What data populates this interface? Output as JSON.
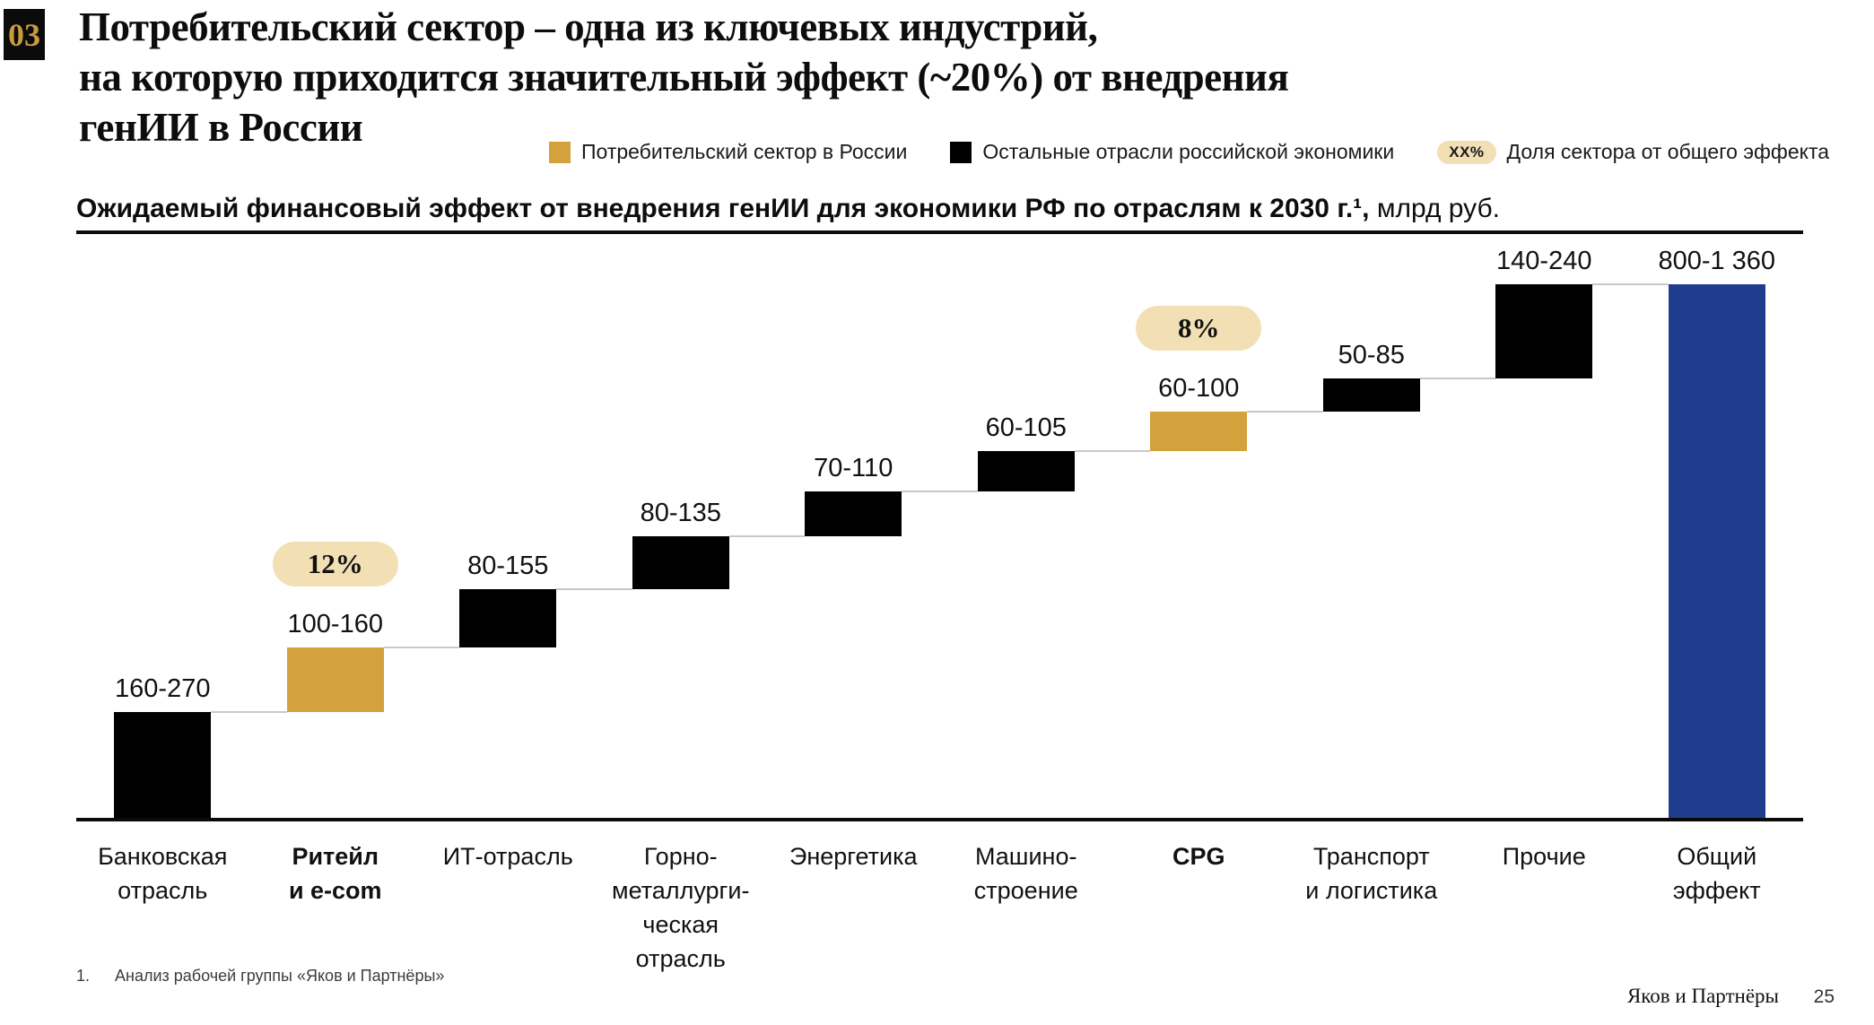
{
  "slide": {
    "badge": "03",
    "title_lines": [
      "Потребительский сектор – одна из ключевых индустрий,",
      "на которую приходится значительный эффект (~20%) от внедрения",
      "генИИ в России"
    ],
    "subtitle_bold": "Ожидаемый финансовый эффект от внедрения генИИ для экономики РФ по отраслям к 2030 г.¹,",
    "subtitle_regular": " млрд руб.",
    "footnote_number": "1.",
    "footnote_text": "Анализ рабочей группы «Яков и Партнёры»",
    "footer_brand": "Яков и Партнёры",
    "footer_page": "25"
  },
  "legend": {
    "items": [
      {
        "type": "swatch",
        "color": "#d4a23c",
        "label": "Потребительский сектор в России"
      },
      {
        "type": "swatch",
        "color": "#000000",
        "label": "Остальные отрасли российской экономики"
      },
      {
        "type": "pill",
        "pill_text": "XX%",
        "label": "Доля сектора от общего эффекта"
      }
    ]
  },
  "chart_data": {
    "type": "bar",
    "subtype": "waterfall",
    "title": "Ожидаемый финансовый эффект от внедрения генИИ для экономики РФ по отраслям к 2030 г., млрд руб.",
    "unit": "млрд руб.",
    "grid": false,
    "baseline_value": 0,
    "categories": [
      "Банковская отрасль",
      "Ритейл и e-com",
      "ИТ-отрасль",
      "Горно-металлургическая отрасль",
      "Энергетика",
      "Машиностроение",
      "CPG",
      "Транспорт и логистика",
      "Прочие",
      "Общий эффект"
    ],
    "items": [
      {
        "category": "Банковская\nотрасль",
        "label": "160-270",
        "low": 160,
        "high": 270,
        "highlight": false
      },
      {
        "category": "Ритейл\nи e-com",
        "label": "100-160",
        "low": 100,
        "high": 160,
        "highlight": true,
        "share": "12%",
        "bold_category": true
      },
      {
        "category": "ИТ-отрасль",
        "label": "80-155",
        "low": 80,
        "high": 155,
        "highlight": false
      },
      {
        "category": "Горно-\nметаллурги-\nческая\nотрасль",
        "label": "80-135",
        "low": 80,
        "high": 135,
        "highlight": false
      },
      {
        "category": "Энергетика",
        "label": "70-110",
        "low": 70,
        "high": 110,
        "highlight": false
      },
      {
        "category": "Машино-\nстроение",
        "label": "60-105",
        "low": 60,
        "high": 105,
        "highlight": false
      },
      {
        "category": "CPG",
        "label": "60-100",
        "low": 60,
        "high": 100,
        "highlight": true,
        "share": "8%",
        "bold_category": true
      },
      {
        "category": "Транспорт\nи логистика",
        "label": "50-85",
        "low": 50,
        "high": 85,
        "highlight": false
      },
      {
        "category": "Прочие",
        "label": "140-240",
        "low": 140,
        "high": 240,
        "highlight": false
      }
    ],
    "total": {
      "category": "Общий\nэффект",
      "label": "800-1 360",
      "low": 800,
      "high": 1360,
      "color": "#1f3d8c"
    },
    "colors": {
      "default": "#000000",
      "highlight": "#d4a23c",
      "total": "#1f3d8c",
      "share_pill_bg": "#f2dfb4",
      "connector": "#c9c9c9"
    },
    "legend_position": "top"
  }
}
